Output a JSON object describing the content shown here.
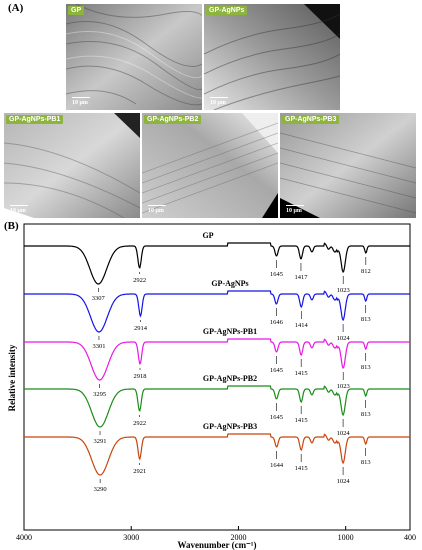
{
  "panels": {
    "a_label": "(A)",
    "b_label": "(B)"
  },
  "sem_images": [
    {
      "label": "GP",
      "scale": "10 μm"
    },
    {
      "label": "GP-AgNPs",
      "scale": "10 μm"
    },
    {
      "label": "GP-AgNPs-PB1",
      "scale": "10 μm"
    },
    {
      "label": "GP-AgNPs-PB2",
      "scale": "10 μm"
    },
    {
      "label": "GP-AgNPs-PB3",
      "scale": "10 μm"
    }
  ],
  "chart_data": {
    "type": "line",
    "xlabel": "Wavenumber (cm⁻¹)",
    "ylabel": "Relative intensity",
    "xlim": [
      4000,
      400
    ],
    "x_ticks": [
      4000,
      3000,
      2000,
      1000,
      400
    ],
    "series": [
      {
        "name": "GP",
        "color": "#000000",
        "peaks": [
          3307,
          2922,
          1645,
          1417,
          1023,
          812
        ]
      },
      {
        "name": "GP-AgNPs",
        "color": "#1414e6",
        "peaks": [
          3301,
          2914,
          1646,
          1414,
          1024,
          813
        ]
      },
      {
        "name": "GP-AgNPs-PB1",
        "color": "#e619e6",
        "peaks": [
          3295,
          2918,
          1645,
          1415,
          1023,
          813
        ]
      },
      {
        "name": "GP-AgNPs-PB2",
        "color": "#1a8c1a",
        "peaks": [
          3291,
          2922,
          1645,
          1415,
          1024,
          813
        ]
      },
      {
        "name": "GP-AgNPs-PB3",
        "color": "#c8460f",
        "peaks": [
          3290,
          2921,
          1644,
          1415,
          1024,
          813
        ]
      }
    ]
  }
}
